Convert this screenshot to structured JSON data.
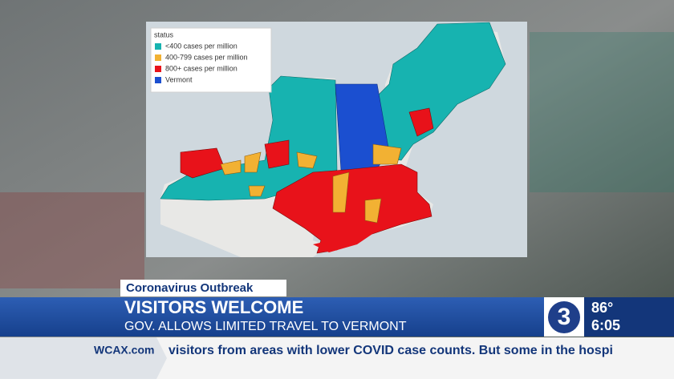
{
  "map": {
    "legend": {
      "title": "status",
      "items": [
        {
          "label": "<400 cases per million",
          "color": "#17b3b0"
        },
        {
          "label": "400-799 cases per million",
          "color": "#f2b133"
        },
        {
          "label": "800+ cases per million",
          "color": "#e8121a"
        },
        {
          "label": "Vermont",
          "color": "#1b4fd0"
        }
      ]
    }
  },
  "lower_third": {
    "tag": "Coronavirus Outbreak",
    "headline": "VISITORS WELCOME",
    "subhead": "GOV. ALLOWS LIMITED TRAVEL TO VERMONT"
  },
  "station": {
    "logo": "3",
    "temperature": "86°",
    "time": "6:05"
  },
  "ticker": {
    "site": "WCAX.com",
    "text": "visitors from areas with lower COVID case counts. But some in the hospi"
  }
}
